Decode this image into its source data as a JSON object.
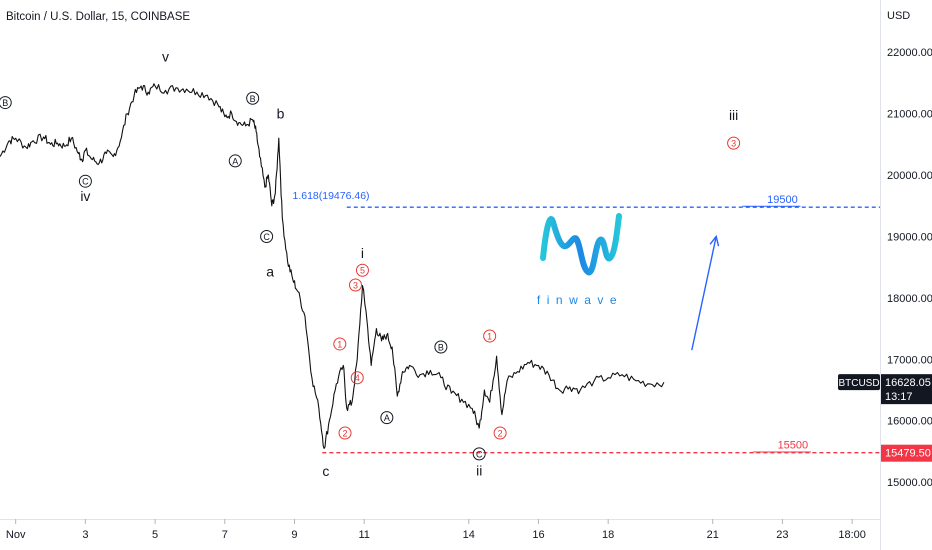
{
  "header": {
    "symbol_title": "Bitcoin / U.S. Dollar, 15, COINBASE"
  },
  "colors": {
    "price": "#111111",
    "blue_dash": "#2962ff",
    "red_dash": "#f23645",
    "wave_red": "#e53935",
    "logo_blue": "#1e88e5",
    "logo_teal": "#26c6da"
  },
  "chart_data": {
    "type": "line",
    "symbol": "BTCUSD",
    "currency": "USD",
    "y_ticks": [
      "22000.00",
      "21000.00",
      "20000.00",
      "19000.00",
      "18000.00",
      "17000.00",
      "16000.00",
      "15000.00"
    ],
    "y_tick_values": [
      22000,
      21000,
      20000,
      19000,
      18000,
      17000,
      16000,
      15000
    ],
    "ylim": [
      14400,
      22850
    ],
    "x_ticks": [
      "Nov",
      "3",
      "5",
      "7",
      "9",
      "11",
      "14",
      "16",
      "18",
      "21",
      "23",
      "18:00"
    ],
    "x_tick_values": [
      1,
      3,
      5,
      7,
      9,
      11,
      14,
      16,
      18,
      21,
      23,
      25
    ],
    "xlim": [
      0.55,
      25.8
    ],
    "series": [
      {
        "values": [
          [
            0.55,
            20300
          ],
          [
            0.8,
            20550
          ],
          [
            1.0,
            20600
          ],
          [
            1.3,
            20450
          ],
          [
            1.5,
            20560
          ],
          [
            1.8,
            20620
          ],
          [
            2.0,
            20500
          ],
          [
            2.2,
            20520
          ],
          [
            2.4,
            20470
          ],
          [
            2.6,
            20600
          ],
          [
            2.8,
            20350
          ],
          [
            2.9,
            20250
          ],
          [
            3.0,
            20400
          ],
          [
            3.2,
            20250
          ],
          [
            3.4,
            20200
          ],
          [
            3.6,
            20350
          ],
          [
            3.8,
            20300
          ],
          [
            4.0,
            20550
          ],
          [
            4.2,
            21000
          ],
          [
            4.4,
            21300
          ],
          [
            4.6,
            21450
          ],
          [
            4.8,
            21350
          ],
          [
            5.0,
            21450
          ],
          [
            5.3,
            21380
          ],
          [
            5.6,
            21420
          ],
          [
            5.9,
            21400
          ],
          [
            6.2,
            21350
          ],
          [
            6.5,
            21300
          ],
          [
            6.8,
            21150
          ],
          [
            7.0,
            20950
          ],
          [
            7.2,
            21000
          ],
          [
            7.4,
            20850
          ],
          [
            7.6,
            20800
          ],
          [
            7.8,
            20900
          ],
          [
            7.9,
            20700
          ],
          [
            8.0,
            20300
          ],
          [
            8.15,
            19800
          ],
          [
            8.25,
            20000
          ],
          [
            8.35,
            19500
          ],
          [
            8.45,
            19700
          ],
          [
            8.55,
            20600
          ],
          [
            8.65,
            19300
          ],
          [
            8.8,
            18600
          ],
          [
            8.95,
            18300
          ],
          [
            9.1,
            18100
          ],
          [
            9.3,
            17700
          ],
          [
            9.5,
            16700
          ],
          [
            9.7,
            16200
          ],
          [
            9.85,
            15550
          ],
          [
            10.0,
            16000
          ],
          [
            10.2,
            16600
          ],
          [
            10.4,
            16900
          ],
          [
            10.5,
            16200
          ],
          [
            10.65,
            16300
          ],
          [
            10.8,
            17000
          ],
          [
            10.95,
            18200
          ],
          [
            11.05,
            17800
          ],
          [
            11.2,
            16900
          ],
          [
            11.35,
            17500
          ],
          [
            11.5,
            17300
          ],
          [
            11.65,
            17400
          ],
          [
            11.8,
            17200
          ],
          [
            11.95,
            16400
          ],
          [
            12.1,
            16800
          ],
          [
            12.3,
            16900
          ],
          [
            12.6,
            16750
          ],
          [
            12.9,
            16820
          ],
          [
            13.2,
            16700
          ],
          [
            13.5,
            16450
          ],
          [
            13.8,
            16350
          ],
          [
            14.1,
            16200
          ],
          [
            14.3,
            15880
          ],
          [
            14.45,
            16500
          ],
          [
            14.6,
            16300
          ],
          [
            14.8,
            17050
          ],
          [
            14.95,
            16100
          ],
          [
            15.1,
            16650
          ],
          [
            15.4,
            16800
          ],
          [
            15.7,
            16950
          ],
          [
            16.0,
            16900
          ],
          [
            16.3,
            16750
          ],
          [
            16.6,
            16500
          ],
          [
            16.9,
            16550
          ],
          [
            17.2,
            16500
          ],
          [
            17.6,
            16650
          ],
          [
            18.0,
            16700
          ],
          [
            18.4,
            16750
          ],
          [
            18.8,
            16650
          ],
          [
            19.2,
            16600
          ],
          [
            19.6,
            16628
          ]
        ]
      }
    ],
    "annotations": [
      {
        "label": "v",
        "x": 5.3,
        "y": 21850,
        "kind": "wave"
      },
      {
        "label": "iv",
        "x": 3.0,
        "y": 19580,
        "kind": "wave"
      },
      {
        "label": "b",
        "x": 8.6,
        "y": 20920,
        "kind": "wave"
      },
      {
        "label": "a",
        "x": 8.3,
        "y": 18350,
        "kind": "wave"
      },
      {
        "label": "c",
        "x": 9.9,
        "y": 15100,
        "kind": "wave"
      },
      {
        "label": "i",
        "x": 10.95,
        "y": 18650,
        "kind": "wave"
      },
      {
        "label": "ii",
        "x": 14.3,
        "y": 15110,
        "kind": "wave"
      },
      {
        "label": "iii",
        "x": 21.6,
        "y": 20900,
        "kind": "wave"
      },
      {
        "label": "B",
        "x": 0.7,
        "y": 21180,
        "kind": "circle"
      },
      {
        "label": "C",
        "x": 3.0,
        "y": 19900,
        "kind": "circle"
      },
      {
        "label": "B",
        "x": 7.8,
        "y": 21250,
        "kind": "circle"
      },
      {
        "label": "A",
        "x": 7.3,
        "y": 20230,
        "kind": "circle"
      },
      {
        "label": "C",
        "x": 8.2,
        "y": 19000,
        "kind": "circle"
      },
      {
        "label": "A",
        "x": 11.65,
        "y": 16050,
        "kind": "circle"
      },
      {
        "label": "B",
        "x": 13.2,
        "y": 17200,
        "kind": "circle"
      },
      {
        "label": "C",
        "x": 14.3,
        "y": 15460,
        "kind": "circle"
      },
      {
        "label": "1",
        "x": 10.3,
        "y": 17250,
        "kind": "red"
      },
      {
        "label": "2",
        "x": 10.45,
        "y": 15800,
        "kind": "red"
      },
      {
        "label": "3",
        "x": 10.75,
        "y": 18210,
        "kind": "red"
      },
      {
        "label": "4",
        "x": 10.8,
        "y": 16700,
        "kind": "red"
      },
      {
        "label": "5",
        "x": 10.95,
        "y": 18450,
        "kind": "red"
      },
      {
        "label": "1",
        "x": 14.6,
        "y": 17380,
        "kind": "red"
      },
      {
        "label": "2",
        "x": 14.9,
        "y": 15800,
        "kind": "red"
      },
      {
        "label": "3",
        "x": 21.6,
        "y": 20520,
        "kind": "red"
      }
    ],
    "levels": [
      {
        "name": "fib",
        "label": "1.618(19476.46)",
        "value": 19476.46,
        "color": "#2962ff",
        "start_x": 10.5
      },
      {
        "name": "low",
        "label": "15479.50",
        "value": 15479.5,
        "color": "#f23645",
        "start_x": 9.8
      }
    ],
    "target_labels": [
      {
        "label": "19500",
        "value": 19500,
        "x": 23.0,
        "color": "#2962ff"
      },
      {
        "label": "15500",
        "value": 15500,
        "x": 23.3,
        "color": "#f23645"
      }
    ],
    "last_price": {
      "label": "BTCUSD",
      "value": "16628.05",
      "countdown": "13:17"
    },
    "arrow": {
      "from": [
        20.4,
        17150
      ],
      "to": [
        21.1,
        19000
      ],
      "color": "#2962ff"
    }
  },
  "logo": {
    "text": "finwave"
  }
}
